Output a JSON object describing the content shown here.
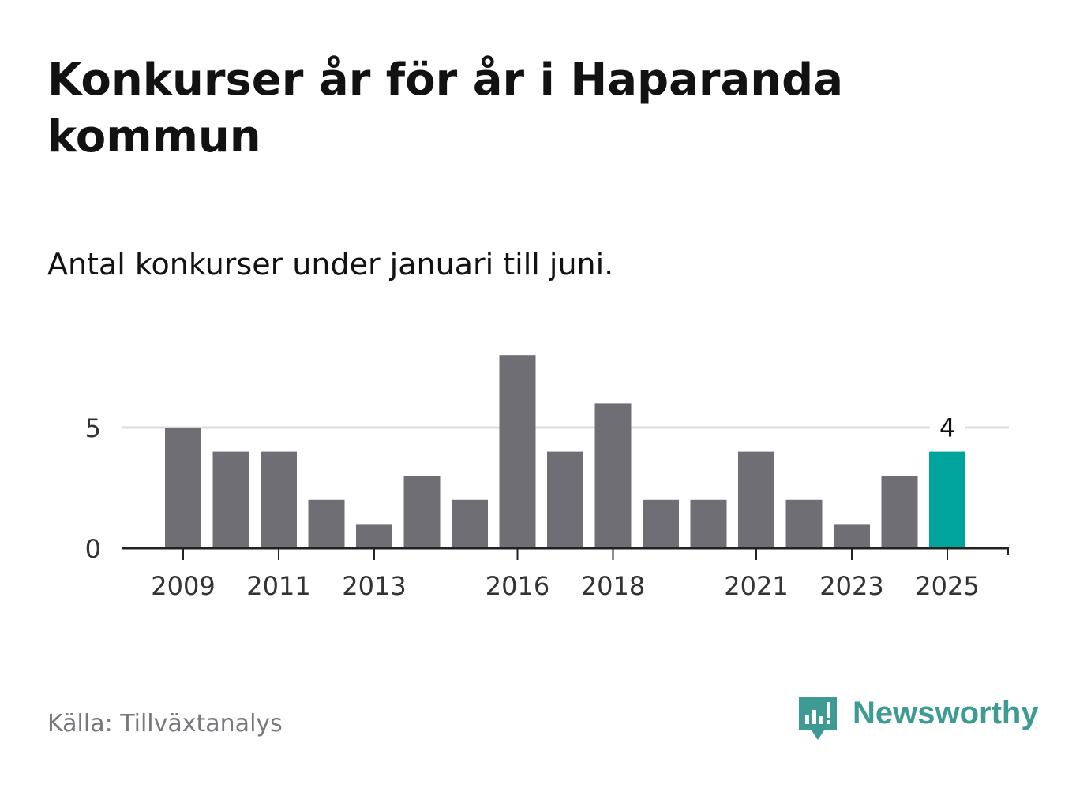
{
  "title": "Konkurser år för år i Haparanda kommun",
  "subtitle": "Antal konkurser under januari till juni.",
  "source": "Källa: Tillväxtanalys",
  "brand": {
    "name": "Newsworthy",
    "icon": "newsworthy-logo-icon",
    "color": "#3e9b93"
  },
  "colors": {
    "bar": "#6f6e74",
    "highlight": "#00a49a",
    "grid": "#dddddd",
    "axis": "#222222",
    "text": "#121212"
  },
  "chart_data": {
    "type": "bar",
    "categories": [
      "2009",
      "2010",
      "2011",
      "2012",
      "2013",
      "2014",
      "2015",
      "2016",
      "2017",
      "2018",
      "2019",
      "2020",
      "2021",
      "2022",
      "2023",
      "2024",
      "2025"
    ],
    "values": [
      5,
      4,
      4,
      2,
      1,
      3,
      2,
      8,
      4,
      6,
      2,
      2,
      4,
      2,
      1,
      3,
      4
    ],
    "highlight": {
      "category": "2025",
      "label": "4"
    },
    "x_tick_labels": [
      "2009",
      "2011",
      "2013",
      "2016",
      "2018",
      "2021",
      "2023",
      "2025"
    ],
    "y_ticks": [
      0,
      5
    ],
    "ylim": [
      0,
      8
    ],
    "grid": true,
    "legend": "none",
    "title": "Konkurser år för år i Haparanda kommun",
    "subtitle": "Antal konkurser under januari till juni.",
    "xlabel": "",
    "ylabel": ""
  }
}
